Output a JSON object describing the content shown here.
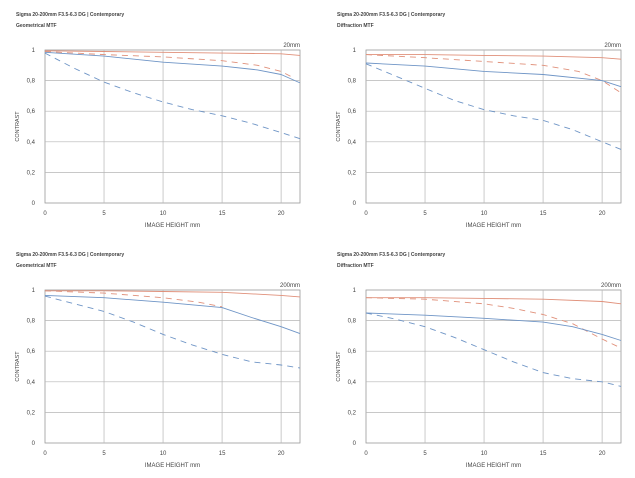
{
  "chart_data": [
    {
      "type": "line",
      "title": "Sigma 20-200mm F3.5-6.3 DG | Contemporary",
      "subtitle": "Geometrical MTF",
      "focal_label": "20mm",
      "xlabel": "IMAGE HEIGHT  mm",
      "ylabel": "CONTRAST",
      "xlim": [
        0,
        21.6
      ],
      "ylim": [
        0,
        1
      ],
      "xticks": [
        "0",
        "5",
        "10",
        "15",
        "20"
      ],
      "yticks": [
        "0",
        "0.2",
        "0.4",
        "0.6",
        "0.8",
        "1"
      ],
      "grid": true,
      "series": [
        {
          "name": "red-solid",
          "color": "#e0907a",
          "dash": false,
          "x": [
            0,
            5,
            10,
            15,
            20,
            21.6
          ],
          "y": [
            0.995,
            0.99,
            0.985,
            0.98,
            0.975,
            0.965
          ]
        },
        {
          "name": "red-dashed",
          "color": "#e0907a",
          "dash": true,
          "x": [
            0,
            5,
            10,
            15,
            18,
            20,
            21
          ],
          "y": [
            0.99,
            0.97,
            0.955,
            0.93,
            0.9,
            0.86,
            0.82
          ]
        },
        {
          "name": "blue-solid",
          "color": "#6f95c6",
          "dash": false,
          "x": [
            0,
            5,
            10,
            15,
            18,
            20,
            21.6
          ],
          "y": [
            0.985,
            0.96,
            0.92,
            0.895,
            0.87,
            0.84,
            0.785
          ]
        },
        {
          "name": "blue-dashed",
          "color": "#6f95c6",
          "dash": true,
          "x": [
            0,
            2.5,
            5,
            7.5,
            10,
            12.5,
            15,
            17.5,
            20,
            21.6
          ],
          "y": [
            0.98,
            0.88,
            0.79,
            0.72,
            0.66,
            0.61,
            0.57,
            0.52,
            0.46,
            0.42
          ]
        }
      ]
    },
    {
      "type": "line",
      "title": "Sigma 20-200mm F3.5-6.3 DG | Contemporary",
      "subtitle": "Diffraction MTF",
      "focal_label": "20mm",
      "xlabel": "IMAGE HEIGHT  mm",
      "ylabel": "CONTRAST",
      "xlim": [
        0,
        21.6
      ],
      "ylim": [
        0,
        1
      ],
      "xticks": [
        "0",
        "5",
        "10",
        "15",
        "20"
      ],
      "yticks": [
        "0",
        "0.2",
        "0.4",
        "0.6",
        "0.8",
        "1"
      ],
      "grid": true,
      "series": [
        {
          "name": "red-solid",
          "color": "#e0907a",
          "dash": false,
          "x": [
            0,
            5,
            10,
            15,
            20,
            21.6
          ],
          "y": [
            0.97,
            0.97,
            0.965,
            0.96,
            0.95,
            0.94
          ]
        },
        {
          "name": "red-dashed",
          "color": "#e0907a",
          "dash": true,
          "x": [
            0,
            5,
            10,
            15,
            18,
            20,
            21.6
          ],
          "y": [
            0.97,
            0.95,
            0.925,
            0.9,
            0.86,
            0.8,
            0.72
          ]
        },
        {
          "name": "blue-solid",
          "color": "#6f95c6",
          "dash": false,
          "x": [
            0,
            5,
            10,
            15,
            20,
            21.6
          ],
          "y": [
            0.915,
            0.895,
            0.86,
            0.84,
            0.8,
            0.76
          ]
        },
        {
          "name": "blue-dashed",
          "color": "#6f95c6",
          "dash": true,
          "x": [
            0,
            2.5,
            5,
            7.5,
            10,
            12.5,
            15,
            17.5,
            20,
            21.6
          ],
          "y": [
            0.91,
            0.83,
            0.75,
            0.67,
            0.61,
            0.57,
            0.54,
            0.48,
            0.4,
            0.35
          ]
        }
      ]
    },
    {
      "type": "line",
      "title": "Sigma 20-200mm F3.5-6.3 DG | Contemporary",
      "subtitle": "Geometrical MTF",
      "focal_label": "200mm",
      "xlabel": "IMAGE HEIGHT  mm",
      "ylabel": "CONTRAST",
      "xlim": [
        0,
        21.6
      ],
      "ylim": [
        0,
        1
      ],
      "xticks": [
        "0",
        "5",
        "10",
        "15",
        "20"
      ],
      "yticks": [
        "0",
        "0.2",
        "0.4",
        "0.6",
        "0.8",
        "1"
      ],
      "grid": true,
      "series": [
        {
          "name": "red-solid",
          "color": "#e0907a",
          "dash": false,
          "x": [
            0,
            5,
            10,
            15,
            20,
            21.6
          ],
          "y": [
            0.995,
            0.995,
            0.99,
            0.985,
            0.965,
            0.955
          ]
        },
        {
          "name": "red-dashed",
          "color": "#e0907a",
          "dash": true,
          "x": [
            0,
            5,
            10,
            13,
            15
          ],
          "y": [
            0.995,
            0.98,
            0.95,
            0.92,
            0.89
          ]
        },
        {
          "name": "blue-solid",
          "color": "#6f95c6",
          "dash": false,
          "x": [
            0,
            5,
            10,
            15,
            17.5,
            20,
            21.6
          ],
          "y": [
            0.965,
            0.95,
            0.92,
            0.885,
            0.82,
            0.76,
            0.715
          ]
        },
        {
          "name": "blue-dashed",
          "color": "#6f95c6",
          "dash": true,
          "x": [
            0,
            2.5,
            5,
            7.5,
            10,
            12.5,
            15,
            17.5,
            20,
            21.6
          ],
          "y": [
            0.96,
            0.91,
            0.86,
            0.79,
            0.71,
            0.64,
            0.58,
            0.53,
            0.51,
            0.49
          ]
        }
      ]
    },
    {
      "type": "line",
      "title": "Sigma 20-200mm F3.5-6.3 DG | Contemporary",
      "subtitle": "Diffraction MTF",
      "focal_label": "200mm",
      "xlabel": "IMAGE HEIGHT  mm",
      "ylabel": "CONTRAST",
      "xlim": [
        0,
        21.6
      ],
      "ylim": [
        0,
        1
      ],
      "xticks": [
        "0",
        "5",
        "10",
        "15",
        "20"
      ],
      "yticks": [
        "0",
        "0.2",
        "0.4",
        "0.6",
        "0.8",
        "1"
      ],
      "grid": true,
      "series": [
        {
          "name": "red-solid",
          "color": "#e0907a",
          "dash": false,
          "x": [
            0,
            5,
            10,
            15,
            20,
            21.6
          ],
          "y": [
            0.95,
            0.95,
            0.945,
            0.94,
            0.925,
            0.91
          ]
        },
        {
          "name": "red-dashed",
          "color": "#e0907a",
          "dash": true,
          "x": [
            0,
            5,
            10,
            12.5,
            15,
            17.5,
            20,
            21.6
          ],
          "y": [
            0.95,
            0.94,
            0.91,
            0.88,
            0.84,
            0.78,
            0.68,
            0.62
          ]
        },
        {
          "name": "blue-solid",
          "color": "#6f95c6",
          "dash": false,
          "x": [
            0,
            5,
            10,
            15,
            17.5,
            20,
            21.6
          ],
          "y": [
            0.85,
            0.835,
            0.815,
            0.79,
            0.76,
            0.71,
            0.67
          ]
        },
        {
          "name": "blue-dashed",
          "color": "#6f95c6",
          "dash": true,
          "x": [
            0,
            2.5,
            5,
            7.5,
            10,
            12.5,
            15,
            17.5,
            20,
            21.6
          ],
          "y": [
            0.85,
            0.81,
            0.76,
            0.69,
            0.61,
            0.53,
            0.46,
            0.42,
            0.4,
            0.37
          ]
        }
      ]
    }
  ]
}
